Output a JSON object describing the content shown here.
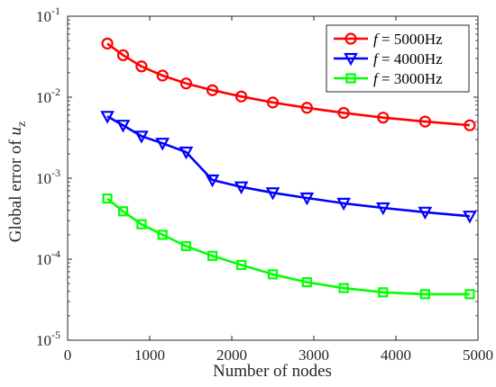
{
  "chart_data": {
    "type": "line",
    "xlabel": "Number of nodes",
    "ylabel_prefix": "Global error of ",
    "ylabel_var": "u",
    "ylabel_sub": "z",
    "xlim": [
      0,
      5000
    ],
    "ylim": [
      1e-05,
      0.1
    ],
    "y_scale": "log",
    "x_ticks": [
      0,
      1000,
      2000,
      3000,
      4000,
      5000
    ],
    "x_tick_labels": [
      "0",
      "1000",
      "2000",
      "3000",
      "4000",
      "5000"
    ],
    "y_ticks": [
      {
        "value": 1e-05,
        "base": "10",
        "exp": "-5"
      },
      {
        "value": 0.0001,
        "base": "10",
        "exp": "-4"
      },
      {
        "value": 0.001,
        "base": "10",
        "exp": "-3"
      },
      {
        "value": 0.01,
        "base": "10",
        "exp": "-2"
      },
      {
        "value": 0.1,
        "base": "10",
        "exp": "-1"
      }
    ],
    "grid": false,
    "legend_position": "top-right",
    "series": [
      {
        "name_var": "f",
        "name_rest": " = 5000Hz",
        "color": "#ff0000",
        "marker": "circle",
        "x": [
          484,
          676,
          900,
          1156,
          1444,
          1764,
          2116,
          2500,
          2916,
          3364,
          3844,
          4356,
          4900
        ],
        "y": [
          0.046,
          0.033,
          0.024,
          0.0185,
          0.0148,
          0.0122,
          0.0102,
          0.0086,
          0.0074,
          0.0064,
          0.0056,
          0.005,
          0.0045
        ]
      },
      {
        "name_var": "f",
        "name_rest": " = 4000Hz",
        "color": "#0000ff",
        "marker": "triangle-down",
        "x": [
          484,
          676,
          900,
          1156,
          1444,
          1764,
          2116,
          2500,
          2916,
          3364,
          3844,
          4356,
          4900
        ],
        "y": [
          0.0058,
          0.0045,
          0.0033,
          0.0027,
          0.0021,
          0.00095,
          0.00078,
          0.00066,
          0.00057,
          0.00049,
          0.00043,
          0.00038,
          0.00034
        ]
      },
      {
        "name_var": "f",
        "name_rest": " = 3000Hz",
        "color": "#00ff00",
        "marker": "square",
        "x": [
          484,
          676,
          900,
          1156,
          1444,
          1764,
          2116,
          2500,
          2916,
          3364,
          3844,
          4356,
          4900
        ],
        "y": [
          0.00056,
          0.00039,
          0.00027,
          0.0002,
          0.000145,
          0.00011,
          8.5e-05,
          6.5e-05,
          5.2e-05,
          4.4e-05,
          3.9e-05,
          3.7e-05,
          3.7e-05
        ]
      }
    ]
  }
}
